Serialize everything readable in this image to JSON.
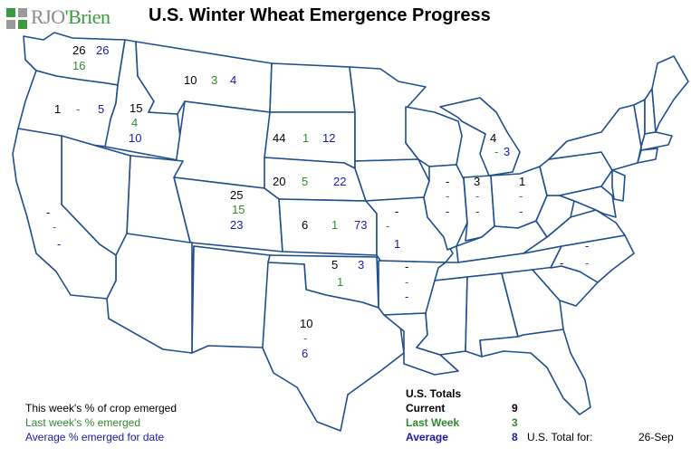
{
  "header": {
    "logo_text_a": "RJO",
    "logo_text_b": "'Brien",
    "title": "U.S. Winter Wheat Emergence Progress"
  },
  "states": {
    "WA": {
      "current": "26",
      "last": "16",
      "avg": "26"
    },
    "OR": {
      "current": "1",
      "last": "-",
      "avg": "5"
    },
    "ID": {
      "current": "15",
      "last": "4",
      "avg": "10"
    },
    "MT": {
      "current": "10",
      "last": "3",
      "avg": "4"
    },
    "SD": {
      "current": "44",
      "last": "1",
      "avg": "12"
    },
    "NE": {
      "current": "20",
      "last": "5",
      "avg": "22"
    },
    "CO": {
      "current": "25",
      "last": "15",
      "avg": "23"
    },
    "KS": {
      "current": "6",
      "last": "1",
      "avg": "73"
    },
    "OK": {
      "current": "5",
      "last": "1",
      "avg": "3"
    },
    "TX": {
      "current": "10",
      "last": "-",
      "avg": "6"
    },
    "CA": {
      "current": "-",
      "last": "-",
      "avg": "-"
    },
    "MO": {
      "current": "-",
      "last": "-",
      "avg": "1"
    },
    "AR": {
      "current": "-",
      "last": "-",
      "avg": "-"
    },
    "IL": {
      "current": "-",
      "last": "-",
      "avg": "-"
    },
    "IN": {
      "current": "3",
      "last": "-",
      "avg": "-"
    },
    "OH": {
      "current": "1",
      "last": "-",
      "avg": "-"
    },
    "MI": {
      "current": "4",
      "last": "-",
      "avg": "3"
    },
    "NC": {
      "current": "-",
      "last": "-",
      "avg": "-"
    }
  },
  "legend": {
    "current": "This week's % of crop emerged",
    "last": "Last week's % emerged",
    "avg": "Average % emerged for date"
  },
  "totals": {
    "heading": "U.S. Totals",
    "current_label": "Current",
    "current_value": "9",
    "last_label": "Last Week",
    "last_value": "3",
    "avg_label": "Average",
    "avg_value": "8",
    "total_for_label": "U.S. Total for:",
    "date": "26-Sep"
  },
  "colors": {
    "current": "#000000",
    "last": "#2e8b2e",
    "average": "#1a1aaa",
    "state_border": "#1f4e8c"
  }
}
